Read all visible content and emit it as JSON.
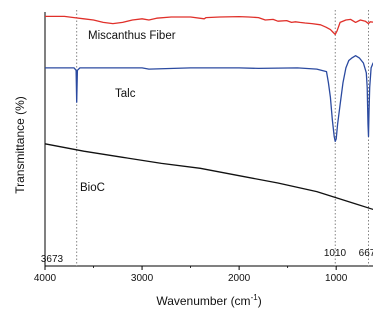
{
  "chart_data": {
    "type": "line",
    "xlabel": "Wavenumber (cm",
    "xlabel_sup": "-1",
    "xlabel_close": ")",
    "ylabel": "Transmittance (%)",
    "xlim": [
      4000,
      600
    ],
    "x_reversed": true,
    "xticks": [
      4000,
      3000,
      2000,
      1000
    ],
    "xtick_labels": [
      "4000",
      "3000",
      "2000",
      "1000"
    ],
    "grid": false,
    "yticks_shown": false,
    "reference_lines": [
      {
        "x": 3673,
        "label": "3673",
        "style": "dotted"
      },
      {
        "x": 1010,
        "label": "1010",
        "style": "dotted"
      },
      {
        "x": 667,
        "label": "667",
        "style": "dotted"
      }
    ],
    "series": [
      {
        "name": "Miscanthus Fiber",
        "color": "#e0302a",
        "x": [
          4000,
          3800,
          3700,
          3600,
          3500,
          3400,
          3300,
          3200,
          3100,
          3000,
          2930,
          2850,
          2700,
          2500,
          2360,
          2340,
          2200,
          2000,
          1900,
          1800,
          1730,
          1650,
          1600,
          1510,
          1460,
          1420,
          1375,
          1320,
          1250,
          1160,
          1105,
          1060,
          1035,
          1010,
          990,
          960,
          900,
          850,
          800,
          750,
          700,
          667,
          650,
          600
        ],
        "y": [
          0.98,
          0.98,
          0.97,
          0.96,
          0.95,
          0.93,
          0.92,
          0.93,
          0.95,
          0.96,
          0.95,
          0.965,
          0.975,
          0.975,
          0.96,
          0.97,
          0.975,
          0.978,
          0.975,
          0.97,
          0.95,
          0.955,
          0.94,
          0.945,
          0.93,
          0.935,
          0.93,
          0.925,
          0.92,
          0.91,
          0.89,
          0.87,
          0.85,
          0.83,
          0.86,
          0.93,
          0.95,
          0.955,
          0.93,
          0.95,
          0.94,
          0.92,
          0.935,
          0.93
        ]
      },
      {
        "name": "Talc",
        "color": "#2b4aa0",
        "x": [
          4000,
          3800,
          3700,
          3680,
          3673,
          3666,
          3640,
          3400,
          3000,
          2930,
          2500,
          2000,
          1800,
          1400,
          1200,
          1100,
          1080,
          1060,
          1040,
          1020,
          1010,
          1000,
          985,
          960,
          930,
          900,
          870,
          840,
          800,
          760,
          720,
          690,
          680,
          672,
          667,
          662,
          655,
          640,
          620,
          600
        ],
        "y": [
          0.78,
          0.78,
          0.78,
          0.77,
          0.64,
          0.77,
          0.78,
          0.78,
          0.78,
          0.775,
          0.78,
          0.78,
          0.778,
          0.78,
          0.775,
          0.765,
          0.72,
          0.66,
          0.57,
          0.5,
          0.48,
          0.49,
          0.55,
          0.63,
          0.72,
          0.78,
          0.81,
          0.82,
          0.83,
          0.82,
          0.8,
          0.76,
          0.7,
          0.55,
          0.5,
          0.6,
          0.7,
          0.78,
          0.8,
          0.79
        ]
      },
      {
        "name": "BioC",
        "color": "#111111",
        "x": [
          4000,
          3600,
          3200,
          2800,
          2400,
          2000,
          1600,
          1200,
          1000,
          800,
          600
        ],
        "y": [
          0.47,
          0.44,
          0.415,
          0.39,
          0.37,
          0.34,
          0.31,
          0.275,
          0.25,
          0.225,
          0.2
        ]
      }
    ]
  }
}
